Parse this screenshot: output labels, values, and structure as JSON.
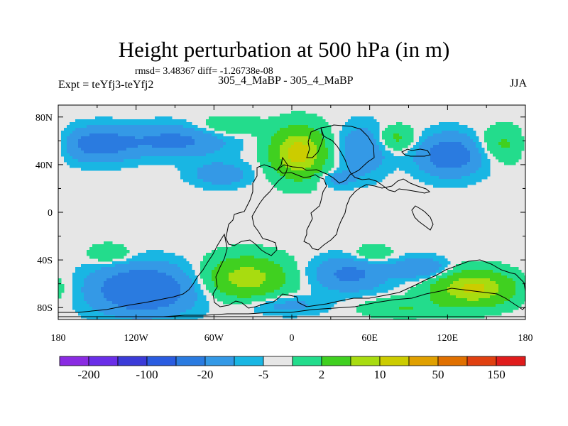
{
  "header": {
    "title": "Height perturbation at 500 hPa (in m)",
    "stats": "rmsd= 3.48367 diff= -1.26738e-08",
    "experiment": "Expt = teYfj3-teYfj2",
    "runs": "305_4_MaBP - 305_4_MaBP",
    "season": "JJA"
  },
  "chart_data": {
    "type": "heatmap",
    "title": "Height perturbation at 500 hPa (in m)",
    "xlim": [
      -180,
      180
    ],
    "ylim": [
      -90,
      90
    ],
    "x_ticks": [
      {
        "v": -180,
        "label": "180"
      },
      {
        "v": -120,
        "label": "120W"
      },
      {
        "v": -60,
        "label": "60W"
      },
      {
        "v": 0,
        "label": "0"
      },
      {
        "v": 60,
        "label": "60E"
      },
      {
        "v": 120,
        "label": "120E"
      },
      {
        "v": 180,
        "label": "180"
      }
    ],
    "y_ticks": [
      {
        "v": 80,
        "label": "80N"
      },
      {
        "v": 40,
        "label": "40N"
      },
      {
        "v": 0,
        "label": "0"
      },
      {
        "v": -40,
        "label": "40S"
      },
      {
        "v": -80,
        "label": "80S"
      }
    ],
    "colorbar": {
      "colors": [
        "#8a2be2",
        "#6a2ee8",
        "#3b3bd8",
        "#2a5ce0",
        "#2a7be0",
        "#3499e6",
        "#19b6e3",
        "#e6e6e6",
        "#23dc8c",
        "#40d020",
        "#a8dc10",
        "#cccc00",
        "#e0a000",
        "#e07000",
        "#e04010",
        "#e01c1c"
      ],
      "labels": [
        "-200",
        "-100",
        "-20",
        "-5",
        "2",
        "10",
        "50",
        "150"
      ]
    },
    "anomalies": [
      {
        "lon": -150,
        "lat": 57,
        "rx": 28,
        "ry": 14,
        "amp": -7
      },
      {
        "lon": -90,
        "lat": 60,
        "rx": 38,
        "ry": 13,
        "amp": -6
      },
      {
        "lon": -55,
        "lat": 32,
        "rx": 22,
        "ry": 10,
        "amp": -4
      },
      {
        "lon": 5,
        "lat": 50,
        "rx": 20,
        "ry": 20,
        "amp": 12
      },
      {
        "lon": -50,
        "lat": 72,
        "rx": 25,
        "ry": 8,
        "amp": 3
      },
      {
        "lon": 55,
        "lat": 52,
        "rx": 18,
        "ry": 20,
        "amp": -5
      },
      {
        "lon": 35,
        "lat": 28,
        "rx": 14,
        "ry": 7,
        "amp": -3
      },
      {
        "lon": 80,
        "lat": 62,
        "rx": 15,
        "ry": 10,
        "amp": 4
      },
      {
        "lon": 122,
        "lat": 48,
        "rx": 24,
        "ry": 17,
        "amp": -8
      },
      {
        "lon": 165,
        "lat": 57,
        "rx": 20,
        "ry": 14,
        "amp": 4
      },
      {
        "lon": -140,
        "lat": -35,
        "rx": 16,
        "ry": 8,
        "amp": 3
      },
      {
        "lon": -115,
        "lat": -65,
        "rx": 38,
        "ry": 20,
        "amp": -10
      },
      {
        "lon": -35,
        "lat": -55,
        "rx": 30,
        "ry": 17,
        "amp": 9
      },
      {
        "lon": 45,
        "lat": -52,
        "rx": 28,
        "ry": 14,
        "amp": -6
      },
      {
        "lon": 62,
        "lat": -35,
        "rx": 15,
        "ry": 7,
        "amp": 3
      },
      {
        "lon": 140,
        "lat": -64,
        "rx": 30,
        "ry": 14,
        "amp": 11
      },
      {
        "lon": 100,
        "lat": -47,
        "rx": 20,
        "ry": 9,
        "amp": -5
      },
      {
        "lon": 85,
        "lat": -80,
        "rx": 30,
        "ry": 8,
        "amp": 3
      },
      {
        "lon": -5,
        "lat": -78,
        "rx": 30,
        "ry": 8,
        "amp": -3
      }
    ]
  }
}
